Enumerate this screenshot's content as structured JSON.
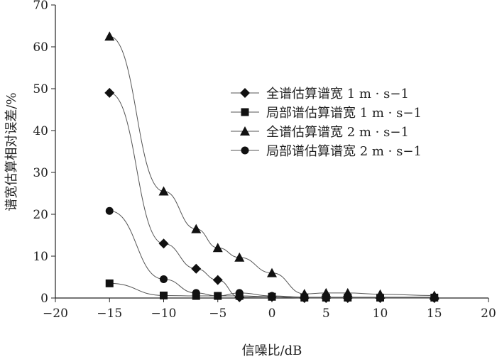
{
  "chart_data": {
    "type": "line",
    "xlabel": "信噪比/dB",
    "ylabel": "谱宽估算相对误差/%",
    "xlim": [
      -20,
      20
    ],
    "ylim": [
      0,
      70
    ],
    "xticks": [
      -20,
      -15,
      -10,
      -5,
      0,
      5,
      10,
      15,
      20
    ],
    "yticks": [
      0,
      10,
      20,
      30,
      40,
      50,
      60,
      70
    ],
    "xtick_labels": [
      "−20",
      "−15",
      "−10",
      "−5",
      "0",
      "5",
      "10",
      "15",
      "20"
    ],
    "ytick_labels": [
      "0",
      "10",
      "20",
      "30",
      "40",
      "50",
      "60",
      "70"
    ],
    "grid": false,
    "legend_position": "right-center",
    "x": [
      -15,
      -10,
      -7,
      -5,
      -3,
      0,
      3,
      5,
      7,
      10,
      15
    ],
    "series": [
      {
        "name": "全谱估算谱宽 1 m · s−1",
        "marker": "diamond",
        "values": [
          49,
          13,
          7,
          4.3,
          0.2,
          0.3,
          0,
          0,
          0,
          0,
          0
        ]
      },
      {
        "name": "局部谱估算谱宽 1 m · s−1",
        "marker": "square",
        "values": [
          3.5,
          0.6,
          0.5,
          0.5,
          0.5,
          0.3,
          0.1,
          0.1,
          0.1,
          0.1,
          0.1
        ]
      },
      {
        "name": "全谱估算谱宽 2 m · s−1",
        "marker": "triangle",
        "values": [
          62.5,
          25.5,
          16.5,
          12,
          9.7,
          6,
          1,
          1.2,
          1.2,
          0.9,
          0.6
        ]
      },
      {
        "name": "局部谱估算谱宽 2 m · s−1",
        "marker": "circle",
        "values": [
          20.8,
          4.5,
          1.2,
          0.5,
          1.2,
          0.5,
          0.2,
          0.2,
          0.2,
          0.2,
          0.2
        ]
      }
    ],
    "colors": {
      "line": "#555555",
      "marker": "#111111",
      "axis": "#222222"
    }
  }
}
